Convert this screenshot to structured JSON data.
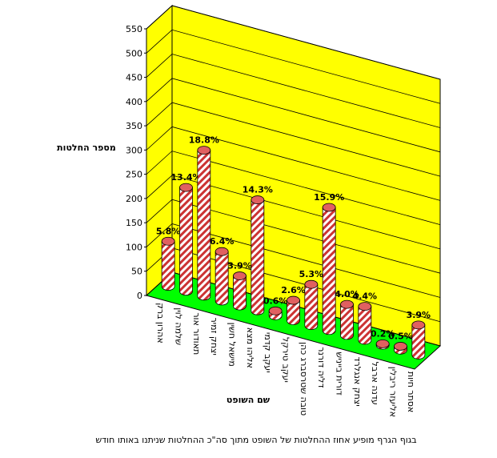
{
  "chart_data": {
    "type": "bar",
    "ylabel": "מספר החלטות",
    "xlabel": "שם השופט",
    "note": "בגוף הגרף מופיע אחוז ההחלטות של השופט מתוך סה\"כ ההחלטות שניתנו באותו חודש",
    "categories": [
      "אהרון ברק",
      "שלמה לוין",
      "תאודור אור",
      "יצחק זמיר",
      "מישאל חשין",
      "אליהו מצא",
      "יעקב קדמי",
      "יעקב טירקל",
      "טובה שטרסברג כהן",
      "דליה דורנר",
      "דורית בייניש",
      "יצחק אנגלרד",
      "עדנה ארבל",
      "אליעזר ריבלין",
      "אסתר חיות"
    ],
    "values": [
      93,
      214,
      301,
      102,
      62,
      229,
      10,
      42,
      85,
      254,
      64,
      70,
      3,
      8,
      62
    ],
    "value_labels": [
      "5.8%",
      "13.4%",
      "18.8%",
      "6.4%",
      "3.9%",
      "14.3%",
      "0.6%",
      "2.6%",
      "5.3%",
      "15.9%",
      "4.0%",
      "4.4%",
      "0.2%",
      "0.5%",
      "3.9%"
    ],
    "color": "#cc3333",
    "wall_color": "#ffff00",
    "floor_color": "#00ff00",
    "ylim": [
      0,
      550
    ],
    "yticks": [
      0,
      50,
      100,
      150,
      200,
      250,
      300,
      350,
      400,
      450,
      500,
      550
    ],
    "grid": true
  }
}
